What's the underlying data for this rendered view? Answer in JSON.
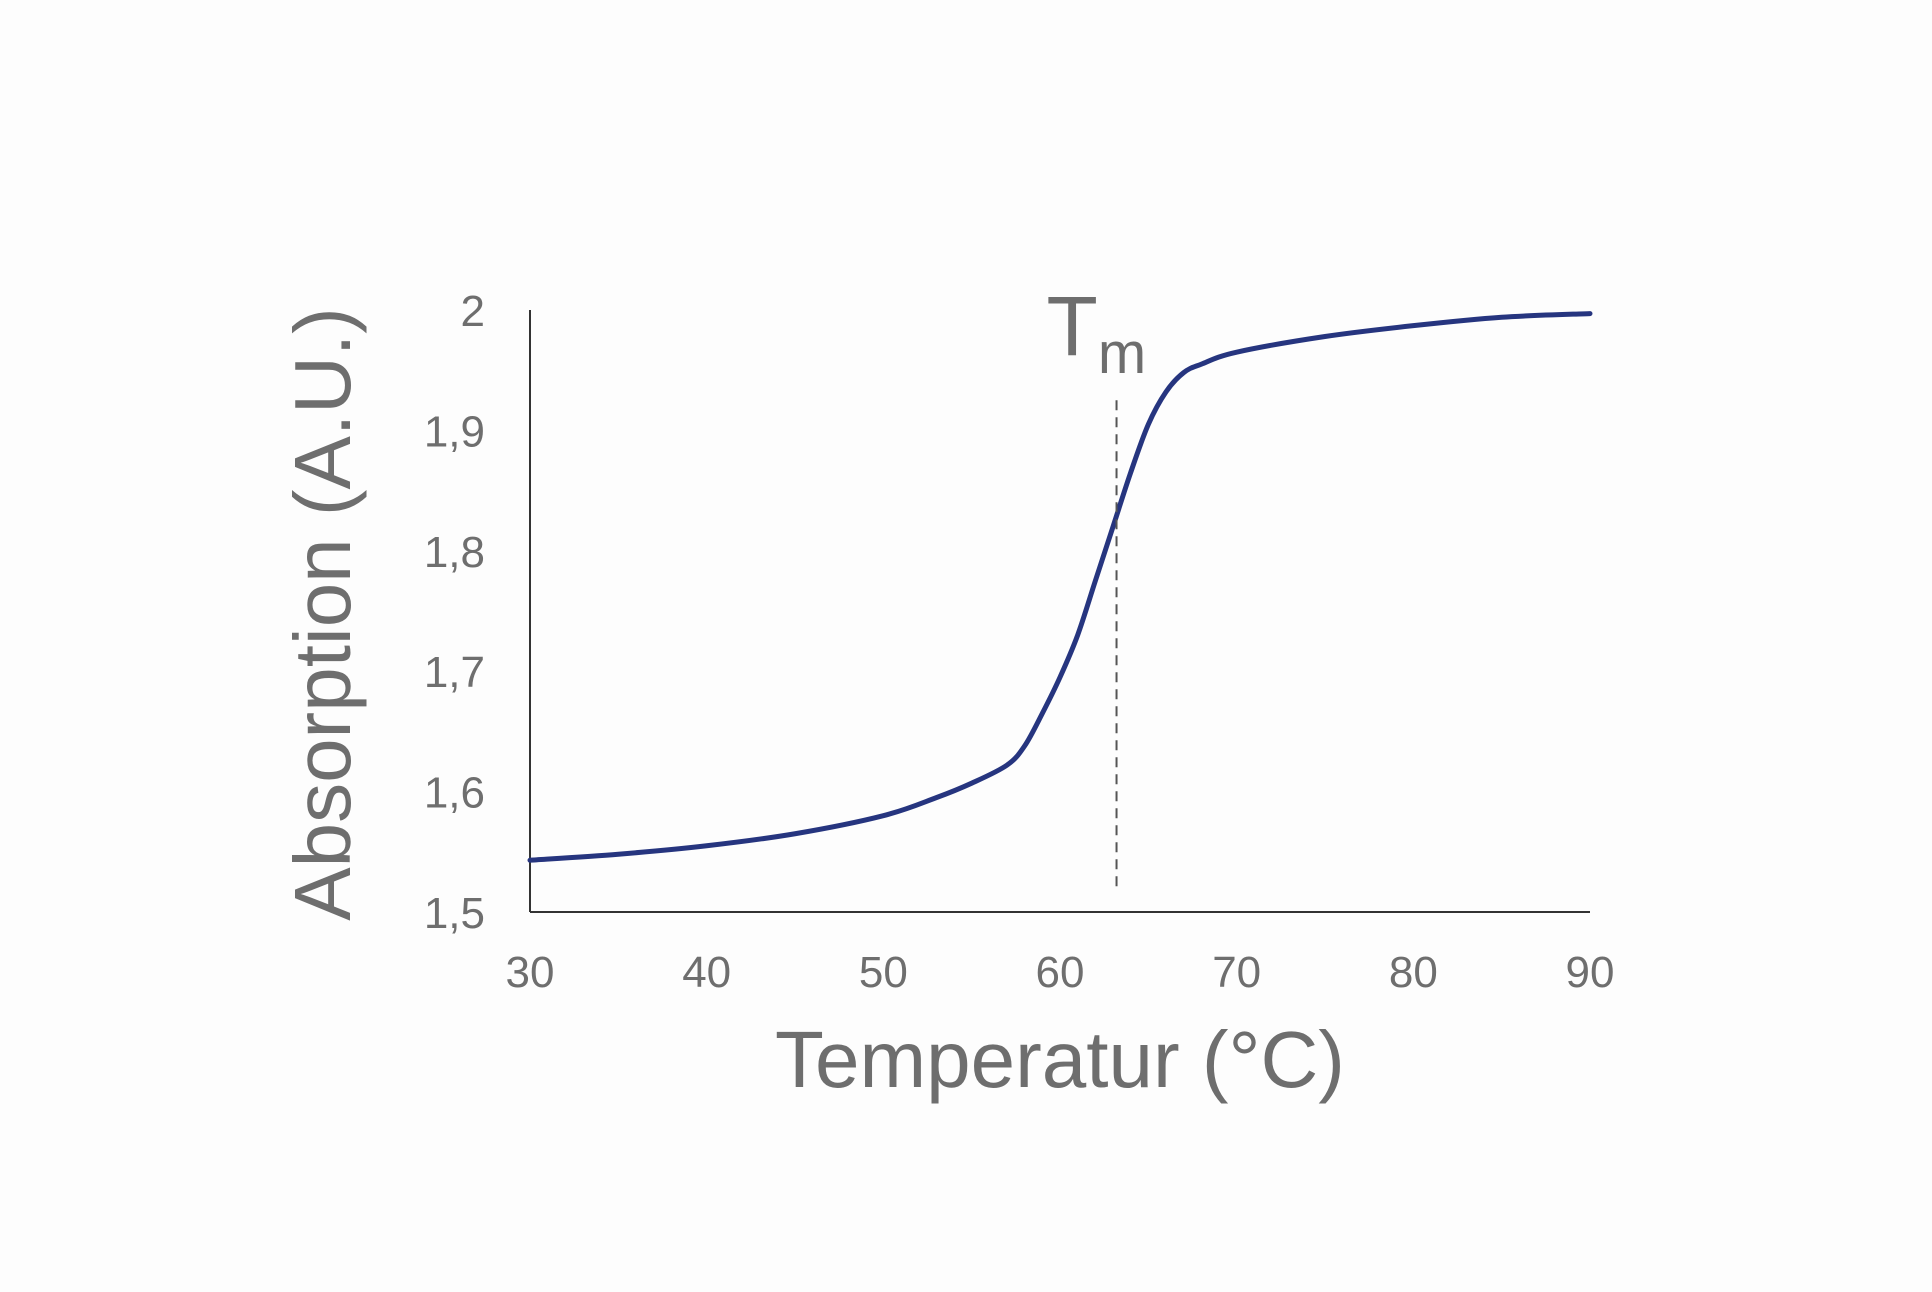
{
  "chart_data": {
    "type": "line",
    "title": "",
    "xlabel": "Temperatur (°C)",
    "ylabel": "Absorption (A.U.)",
    "xlim": [
      30,
      90
    ],
    "ylim": [
      1.5,
      2.0
    ],
    "x_ticks": [
      30,
      40,
      50,
      60,
      70,
      80,
      90
    ],
    "x_tick_labels": [
      "30",
      "40",
      "50",
      "60",
      "70",
      "80",
      "90"
    ],
    "y_ticks": [
      1.5,
      1.6,
      1.7,
      1.8,
      1.9,
      2.0
    ],
    "y_tick_labels": [
      "1,5",
      "1,6",
      "1,7",
      "1,8",
      "1,9",
      "2"
    ],
    "grid": false,
    "legend": "none",
    "series": [
      {
        "x": [
          30,
          35,
          40,
          45,
          50,
          53,
          55,
          57,
          58,
          59,
          60,
          61,
          62,
          63,
          64,
          65,
          66,
          67,
          68,
          70,
          75,
          80,
          85,
          90
        ],
        "y": [
          1.543,
          1.548,
          1.555,
          1.565,
          1.58,
          1.595,
          1.607,
          1.622,
          1.638,
          1.665,
          1.695,
          1.73,
          1.775,
          1.82,
          1.865,
          1.905,
          1.932,
          1.948,
          1.955,
          1.965,
          1.978,
          1.987,
          1.994,
          1.997
        ],
        "color": "#26357f"
      }
    ],
    "annotations": [
      {
        "type": "vline",
        "x": 63.2,
        "y_range": [
          1.517,
          1.925
        ],
        "style": "dashed",
        "label_main": "T",
        "label_sub": "m"
      }
    ],
    "colors": {
      "axis": "#333333",
      "text": "#6e6e6e",
      "line": "#26357f",
      "dashed": "#555555"
    }
  }
}
